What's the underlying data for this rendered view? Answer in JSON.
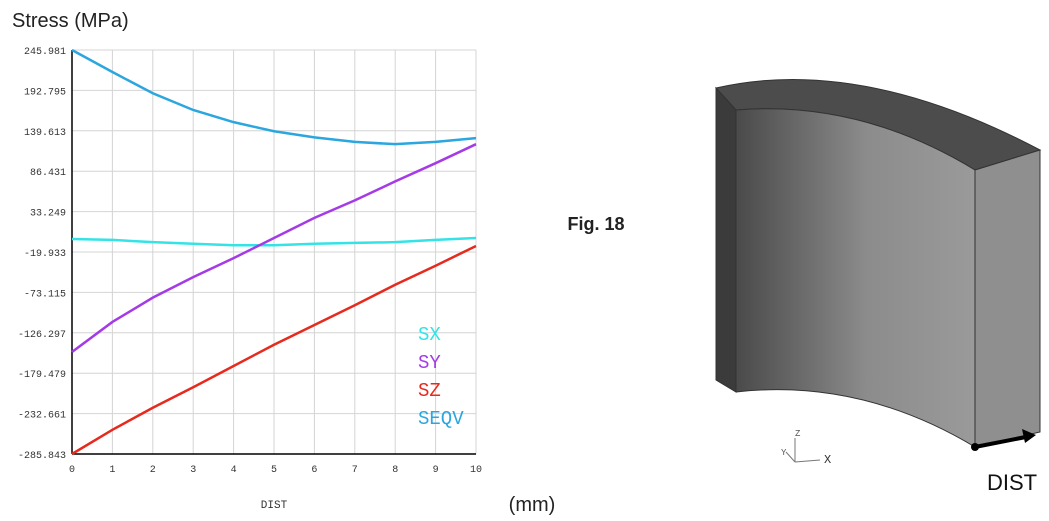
{
  "chart_data": {
    "type": "line",
    "title": "Stress (MPa)",
    "x_label": "DIST",
    "x_unit": "(mm)",
    "x": [
      0,
      1,
      2,
      3,
      4,
      5,
      6,
      7,
      8,
      9,
      10
    ],
    "series": [
      {
        "name": "SX",
        "color": "#33e3e6",
        "values": [
          -2.8,
          -4,
          -7,
          -9,
          -11,
          -11,
          -9,
          -8,
          -7,
          -4,
          -1.5
        ]
      },
      {
        "name": "SY",
        "color": "#a43be6",
        "values": [
          -151.6,
          -112,
          -80,
          -53,
          -28,
          -1.5,
          25,
          48,
          73,
          97,
          122
        ]
      },
      {
        "name": "SZ",
        "color": "#e62a1e",
        "values": [
          -285.843,
          -254,
          -225,
          -198,
          -170,
          -142,
          -116,
          -90,
          -63,
          -38,
          -12
        ]
      },
      {
        "name": "SEQV",
        "color": "#2ba6df",
        "values": [
          245.981,
          217,
          189,
          167,
          151,
          139,
          131,
          125,
          122,
          125,
          130
        ]
      }
    ],
    "xlim": [
      0,
      10
    ],
    "xticks": [
      0,
      1,
      2,
      3,
      4,
      5,
      6,
      7,
      8,
      9,
      10
    ],
    "ylim": [
      -285.843,
      245.981
    ],
    "yticks": [
      -285.843,
      -232.661,
      -179.479,
      -126.297,
      -73.115,
      -19.933,
      33.249,
      86.431,
      139.613,
      192.795,
      245.981
    ],
    "grid": true
  },
  "figure": {
    "label": "Fig. 18",
    "model_label": "DIST",
    "triad": {
      "x": "X",
      "y": "Y",
      "z": "Z"
    }
  }
}
